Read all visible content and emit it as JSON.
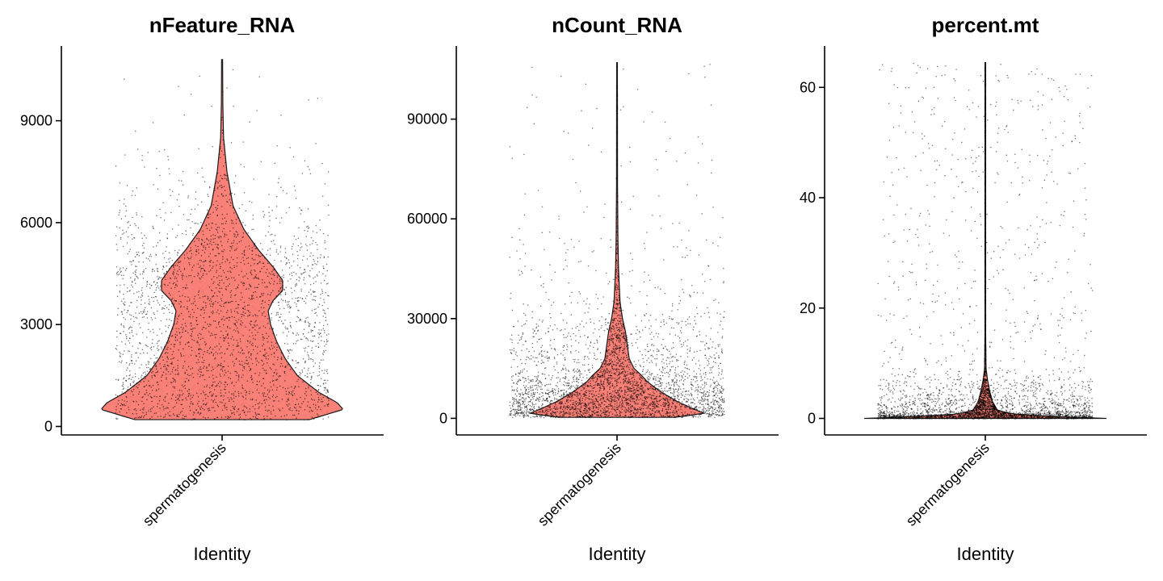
{
  "chart_data": [
    {
      "type": "violin",
      "title": "nFeature_RNA",
      "xlabel": "Identity",
      "ylabel": "",
      "categories": [
        "spermatogenesis"
      ],
      "ylim": [
        -250,
        11200
      ],
      "yticks": [
        0,
        3000,
        6000,
        9000
      ],
      "ytick_labels": [
        "0",
        "3000",
        "6000",
        "9000"
      ],
      "fill_color": "#F8766D",
      "point_color": "#000000",
      "n_points_shown": 3000,
      "distribution": {
        "min": 200,
        "max": 10800,
        "median": 2500,
        "density_profile": [
          [
            200,
            0.72
          ],
          [
            500,
            1.0
          ],
          [
            700,
            0.95
          ],
          [
            1000,
            0.8
          ],
          [
            1500,
            0.62
          ],
          [
            2000,
            0.52
          ],
          [
            2500,
            0.45
          ],
          [
            3000,
            0.4
          ],
          [
            3400,
            0.38
          ],
          [
            3700,
            0.42
          ],
          [
            4000,
            0.5
          ],
          [
            4300,
            0.5
          ],
          [
            4700,
            0.42
          ],
          [
            5200,
            0.3
          ],
          [
            5800,
            0.18
          ],
          [
            6500,
            0.09
          ],
          [
            7500,
            0.04
          ],
          [
            8500,
            0.012
          ],
          [
            9500,
            0.006
          ],
          [
            10800,
            0.004
          ]
        ]
      },
      "grid": false,
      "legend": "none"
    },
    {
      "type": "violin",
      "title": "nCount_RNA",
      "xlabel": "Identity",
      "ylabel": "",
      "categories": [
        "spermatogenesis"
      ],
      "ylim": [
        -5000,
        112000
      ],
      "yticks": [
        0,
        30000,
        60000,
        90000
      ],
      "ytick_labels": [
        "0",
        "30000",
        "60000",
        "90000"
      ],
      "fill_color": "#F8766D",
      "point_color": "#000000",
      "n_points_shown": 3000,
      "distribution": {
        "min": 300,
        "max": 107000,
        "median": 5000,
        "density_profile": [
          [
            300,
            0.48
          ],
          [
            1500,
            0.72
          ],
          [
            3000,
            0.62
          ],
          [
            5000,
            0.5
          ],
          [
            8000,
            0.36
          ],
          [
            11000,
            0.25
          ],
          [
            13000,
            0.2
          ],
          [
            15000,
            0.14
          ],
          [
            18000,
            0.1
          ],
          [
            22000,
            0.085
          ],
          [
            26000,
            0.07
          ],
          [
            30000,
            0.045
          ],
          [
            35000,
            0.025
          ],
          [
            45000,
            0.012
          ],
          [
            55000,
            0.007
          ],
          [
            70000,
            0.004
          ],
          [
            107000,
            0.003
          ]
        ]
      },
      "grid": false,
      "legend": "none"
    },
    {
      "type": "violin",
      "title": "percent.mt",
      "xlabel": "Identity",
      "ylabel": "",
      "categories": [
        "spermatogenesis"
      ],
      "ylim": [
        -3,
        67.5
      ],
      "yticks": [
        0,
        20,
        40,
        60
      ],
      "ytick_labels": [
        "0",
        "20",
        "40",
        "60"
      ],
      "fill_color": "#F8766D",
      "point_color": "#000000",
      "n_points_shown": 3000,
      "distribution": {
        "min": 0,
        "max": 64.5,
        "median": 0.1,
        "density_profile": [
          [
            0,
            1.0
          ],
          [
            0.3,
            0.6
          ],
          [
            0.8,
            0.22
          ],
          [
            1.5,
            0.1
          ],
          [
            3,
            0.06
          ],
          [
            5,
            0.035
          ],
          [
            7,
            0.018
          ],
          [
            9,
            0.006
          ],
          [
            15,
            0.003
          ],
          [
            64.5,
            0.003
          ]
        ]
      },
      "grid": false,
      "legend": "none"
    }
  ]
}
